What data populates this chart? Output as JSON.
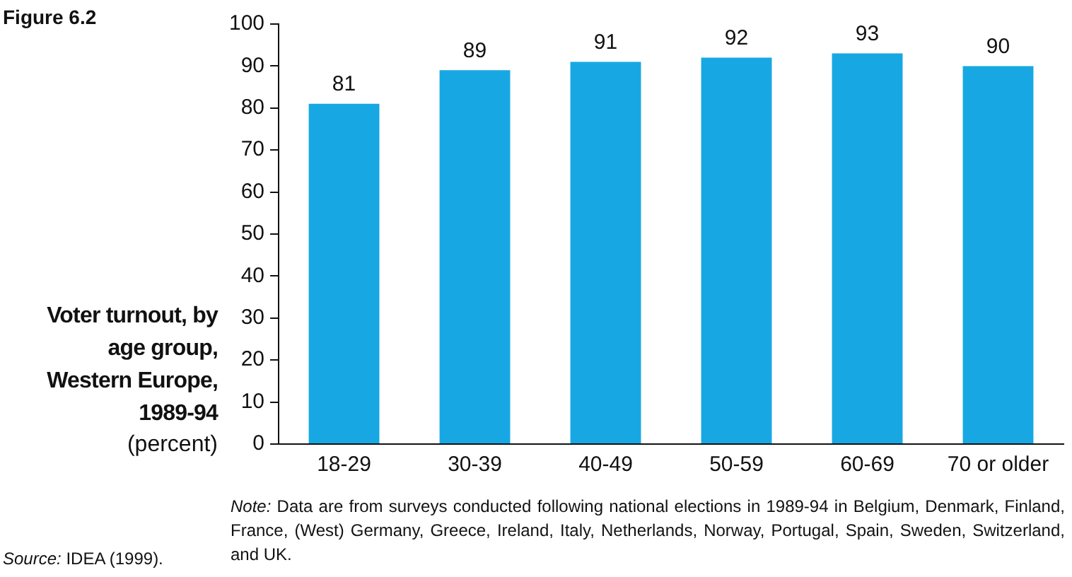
{
  "chart_data": {
    "type": "bar",
    "title": "Voter turnout, by age group, Western Europe, 1989-94",
    "subtitle": "(percent)",
    "categories": [
      "18-29",
      "30-39",
      "40-49",
      "50-59",
      "60-69",
      "70 or older"
    ],
    "values": [
      81,
      89,
      91,
      92,
      93,
      90
    ],
    "color": "#17a8e3",
    "ylim": [
      0,
      100
    ],
    "yticks": [
      0,
      10,
      20,
      30,
      40,
      50,
      60,
      70,
      80,
      90,
      100
    ],
    "grid": false,
    "legend": false,
    "data_labels": true,
    "annotations": [
      "Figure 6.2",
      "Source: IDEA (1999).",
      "Note: Data are from surveys conducted following national elections in 1989-94 in Belgium, Denmark, Finland, France, (West) Germany, Greece, Ireland, Italy, Netherlands, Norway, Portugal, Spain, Sweden, Switzerland, and UK."
    ]
  }
}
